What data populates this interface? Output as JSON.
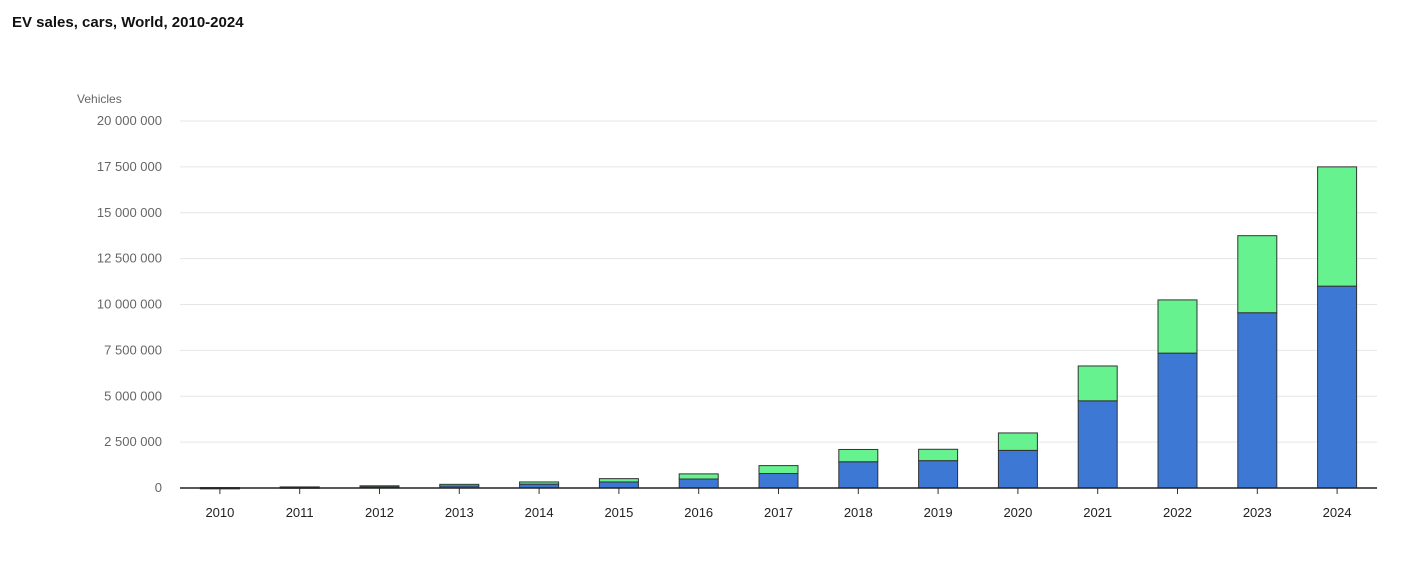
{
  "title": "EV sales, cars, World, 2010-2024",
  "chart_data": {
    "type": "bar",
    "stacked": true,
    "title": "EV sales, cars, World, 2010-2024",
    "xlabel": "",
    "ylabel": "Vehicles",
    "ylim": [
      0,
      20000000
    ],
    "yticks": [
      0,
      2500000,
      5000000,
      7500000,
      10000000,
      12500000,
      15000000,
      17500000,
      20000000
    ],
    "ytick_labels": [
      "0",
      "2 500 000",
      "5 000 000",
      "7 500 000",
      "10 000 000",
      "12 500 000",
      "15 000 000",
      "17 500 000",
      "20 000 000"
    ],
    "grid": true,
    "legend": "none",
    "categories": [
      "2010",
      "2011",
      "2012",
      "2013",
      "2014",
      "2015",
      "2016",
      "2017",
      "2018",
      "2019",
      "2020",
      "2021",
      "2022",
      "2023",
      "2024"
    ],
    "series": [
      {
        "color": "#3c78d4",
        "values": [
          10000,
          40000,
          60000,
          110000,
          210000,
          330000,
          490000,
          790000,
          1430000,
          1490000,
          2050000,
          4750000,
          7350000,
          9550000,
          11000000
        ]
      },
      {
        "color": "#66f28f",
        "values": [
          10000,
          20000,
          60000,
          90000,
          120000,
          180000,
          280000,
          430000,
          670000,
          620000,
          950000,
          1900000,
          2900000,
          4200000,
          6500000
        ]
      }
    ]
  }
}
